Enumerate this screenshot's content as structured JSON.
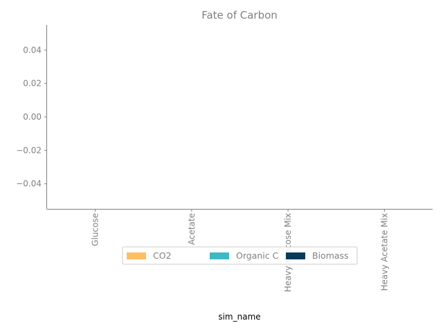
{
  "chart_data": {
    "type": "bar",
    "stacked": true,
    "title": "Fate of Carbon",
    "xlabel": "sim_name",
    "ylabel": "",
    "categories": [
      "Glucose",
      "Acetate",
      "Heavy Glucose Mix",
      "Heavy Acetate Mix"
    ],
    "series": [
      {
        "name": "CO2",
        "color": "#ffbe63",
        "values": [
          0,
          0,
          0,
          0
        ]
      },
      {
        "name": "Organic C",
        "color": "#3fb8c6",
        "values": [
          0,
          0,
          0,
          0
        ]
      },
      {
        "name": "Biomass",
        "color": "#073b5b",
        "values": [
          0,
          0,
          0,
          0
        ]
      }
    ],
    "ylim": [
      -0.055,
      0.055
    ],
    "yticks": [
      0.04,
      0.02,
      0.0,
      -0.02,
      -0.04
    ],
    "ytick_labels": [
      "0.04",
      "0.02",
      "0.00",
      "−0.02",
      "−0.04"
    ],
    "xtick_rotation": 90,
    "grid": false,
    "legend_position": "lower center, inside",
    "legend_columns": 3
  }
}
